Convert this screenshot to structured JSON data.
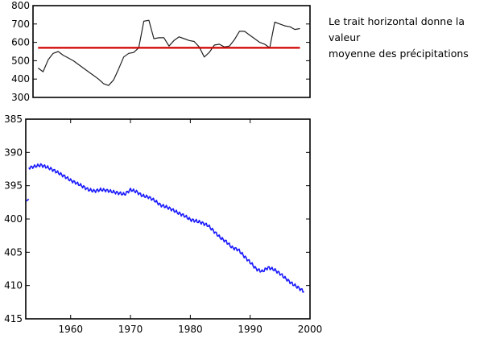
{
  "note": {
    "line1": "Le trait horizontal donne la valeur",
    "line2": "moyenne des précipitations"
  },
  "chart_data": [
    {
      "type": "line",
      "title": "",
      "xlabel": "",
      "ylabel": "",
      "xlim": [
        1944,
        1999
      ],
      "ylim": [
        300,
        800
      ],
      "yticks": [
        300,
        400,
        500,
        600,
        700,
        800
      ],
      "ytick_labels": [
        "300",
        "400",
        "500",
        "600",
        "700",
        "800"
      ],
      "grid": false,
      "legend": "none",
      "series": [
        {
          "color": "#222222",
          "x": [
            1945,
            1946,
            1947,
            1948,
            1949,
            1950,
            1951,
            1952,
            1953,
            1954,
            1955,
            1956,
            1957,
            1958,
            1959,
            1960,
            1961,
            1962,
            1963,
            1964,
            1965,
            1966,
            1967,
            1968,
            1969,
            1970,
            1971,
            1972,
            1973,
            1974,
            1975,
            1976,
            1977,
            1978,
            1979,
            1980,
            1981,
            1982,
            1983,
            1984,
            1985,
            1986,
            1987,
            1988,
            1989,
            1990,
            1991,
            1992,
            1993,
            1994,
            1995,
            1996,
            1997
          ],
          "y": [
            460,
            440,
            505,
            540,
            550,
            530,
            515,
            500,
            480,
            460,
            440,
            420,
            400,
            375,
            365,
            395,
            455,
            520,
            540,
            545,
            570,
            715,
            720,
            620,
            625,
            625,
            580,
            610,
            630,
            620,
            610,
            605,
            575,
            520,
            545,
            585,
            590,
            575,
            580,
            615,
            660,
            660,
            640,
            620,
            600,
            590,
            570,
            710,
            700,
            690,
            685,
            670,
            675
          ]
        },
        {
          "color": "#d00000",
          "x": [
            1945,
            1997
          ],
          "y": [
            570,
            570
          ]
        }
      ]
    },
    {
      "type": "line",
      "title": "",
      "xlabel": "",
      "ylabel": "",
      "xlim": [
        1952.5,
        2000
      ],
      "ylim": [
        385,
        415
      ],
      "y_inverted": true,
      "xticks": [
        1960,
        1970,
        1980,
        1990,
        2000
      ],
      "xtick_labels": [
        "1960",
        "1970",
        "1980",
        "1990",
        "2000"
      ],
      "yticks": [
        385,
        390,
        395,
        400,
        405,
        410,
        415
      ],
      "ytick_labels": [
        "385",
        "390",
        "395",
        "400",
        "405",
        "410",
        "415"
      ],
      "grid": false,
      "legend": "none",
      "series": [
        {
          "color": "#1a1aff",
          "x": [
            1953,
            1954,
            1955,
            1956,
            1957,
            1958,
            1959,
            1960,
            1961,
            1962,
            1963,
            1964,
            1965,
            1966,
            1967,
            1968,
            1969,
            1970,
            1971,
            1972,
            1973,
            1974,
            1975,
            1976,
            1977,
            1978,
            1979,
            1980,
            1981,
            1982,
            1983,
            1984,
            1985,
            1986,
            1987,
            1988,
            1989,
            1990,
            1991,
            1992,
            1993,
            1994,
            1995,
            1996,
            1997,
            1998,
            1999
          ],
          "y": [
            392.3,
            392.1,
            391.9,
            392.2,
            392.6,
            393.1,
            393.6,
            394.2,
            394.6,
            395.1,
            395.6,
            395.8,
            395.6,
            395.7,
            395.9,
            396.1,
            396.3,
            395.6,
            395.9,
            396.5,
            396.7,
            397.2,
            397.9,
            398.2,
            398.6,
            399.1,
            399.5,
            400.1,
            400.3,
            400.6,
            401.0,
            401.9,
            402.8,
            403.4,
            404.3,
            404.6,
            405.6,
            406.5,
            407.5,
            407.9,
            407.3,
            407.6,
            408.2,
            409.0,
            409.7,
            410.3,
            410.9
          ]
        },
        {
          "color": "#1a1aff",
          "x": [
            1952.6,
            1953
          ],
          "y": [
            397.3,
            397.0
          ]
        }
      ]
    }
  ]
}
